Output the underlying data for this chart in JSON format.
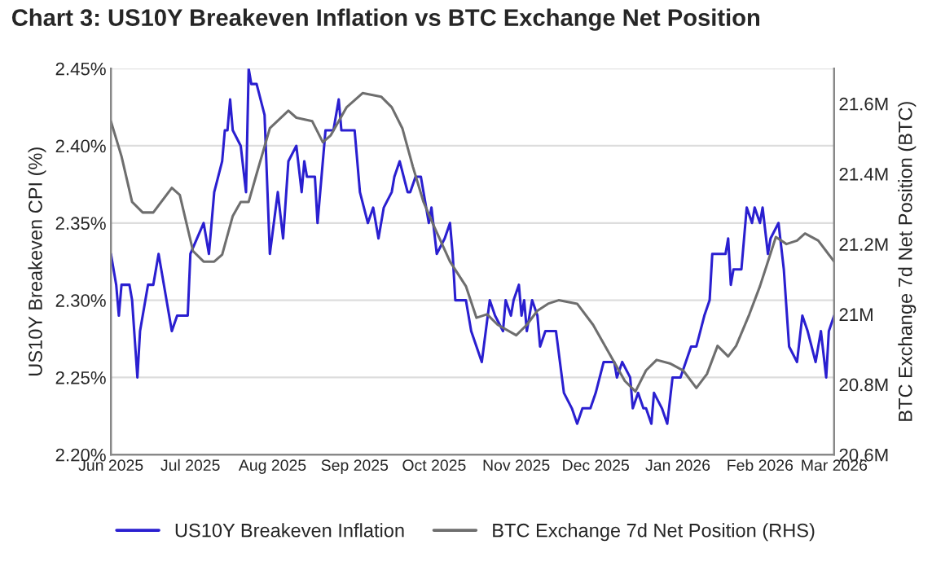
{
  "chart_data": {
    "type": "line",
    "title": "Chart 3: US10Y Breakeven Inflation vs BTC Exchange Net Position",
    "ylabel": "US10Y Breakeven CPI (%)",
    "y2label": "BTC Exchange 7d Net Position (BTC)",
    "xlim": [
      "2025-06-01",
      "2026-03-01"
    ],
    "xticks": [
      {
        "value": "2025-06-01",
        "label": "Jun 2025"
      },
      {
        "value": "2025-07-01",
        "label": "Jul 2025"
      },
      {
        "value": "2025-08-01",
        "label": "Aug 2025"
      },
      {
        "value": "2025-09-01",
        "label": "Sep 2025"
      },
      {
        "value": "2025-10-01",
        "label": "Oct 2025"
      },
      {
        "value": "2025-11-01",
        "label": "Nov 2025"
      },
      {
        "value": "2025-12-01",
        "label": "Dec 2025"
      },
      {
        "value": "2026-01-01",
        "label": "Jan 2026"
      },
      {
        "value": "2026-02-01",
        "label": "Feb 2026"
      },
      {
        "value": "2026-03-01",
        "label": "Mar 2026"
      }
    ],
    "ylim": [
      2.2,
      2.45
    ],
    "yticks": [
      {
        "value": 2.2,
        "label": "2.20%"
      },
      {
        "value": 2.25,
        "label": "2.25%"
      },
      {
        "value": 2.3,
        "label": "2.30%"
      },
      {
        "value": 2.35,
        "label": "2.35%"
      },
      {
        "value": 2.4,
        "label": "2.40%"
      },
      {
        "value": 2.45,
        "label": "2.45%"
      }
    ],
    "y2lim": [
      20.6,
      21.7
    ],
    "y2ticks": [
      {
        "value": 20.6,
        "label": "20.6M"
      },
      {
        "value": 20.8,
        "label": "20.8M"
      },
      {
        "value": 21.0,
        "label": "21M"
      },
      {
        "value": 21.2,
        "label": "21.2M"
      },
      {
        "value": 21.4,
        "label": "21.4M"
      },
      {
        "value": 21.6,
        "label": "21.6M"
      }
    ],
    "grid": "y",
    "legend": "bottom",
    "marker": "none",
    "line_style": "solid",
    "series": [
      {
        "name": "US10Y Breakeven Inflation",
        "color": "#2a1fd0",
        "x": [
          "2025-06-01",
          "2025-06-03",
          "2025-06-04",
          "2025-06-05",
          "2025-06-08",
          "2025-06-09",
          "2025-06-11",
          "2025-06-12",
          "2025-06-15",
          "2025-06-17",
          "2025-06-19",
          "2025-06-24",
          "2025-06-26",
          "2025-06-30",
          "2025-07-01",
          "2025-07-06",
          "2025-07-08",
          "2025-07-10",
          "2025-07-13",
          "2025-07-14",
          "2025-07-15",
          "2025-07-16",
          "2025-07-17",
          "2025-07-20",
          "2025-07-22",
          "2025-07-23",
          "2025-07-24",
          "2025-07-26",
          "2025-07-29",
          "2025-07-31",
          "2025-08-03",
          "2025-08-05",
          "2025-08-07",
          "2025-08-10",
          "2025-08-12",
          "2025-08-13",
          "2025-08-14",
          "2025-08-17",
          "2025-08-18",
          "2025-08-21",
          "2025-08-24",
          "2025-08-26",
          "2025-08-27",
          "2025-09-01",
          "2025-09-03",
          "2025-09-06",
          "2025-09-08",
          "2025-09-10",
          "2025-09-12",
          "2025-09-15",
          "2025-09-16",
          "2025-09-18",
          "2025-09-21",
          "2025-09-22",
          "2025-09-24",
          "2025-09-26",
          "2025-09-29",
          "2025-09-30",
          "2025-10-02",
          "2025-10-05",
          "2025-10-07",
          "2025-10-08",
          "2025-10-09",
          "2025-10-13",
          "2025-10-15",
          "2025-10-19",
          "2025-10-22",
          "2025-10-24",
          "2025-10-27",
          "2025-10-28",
          "2025-10-30",
          "2025-10-31",
          "2025-11-02",
          "2025-11-03",
          "2025-11-04",
          "2025-11-05",
          "2025-11-07",
          "2025-11-09",
          "2025-11-10",
          "2025-11-12",
          "2025-11-16",
          "2025-11-19",
          "2025-11-22",
          "2025-11-24",
          "2025-11-26",
          "2025-11-29",
          "2025-12-01",
          "2025-12-04",
          "2025-12-08",
          "2025-12-09",
          "2025-12-11",
          "2025-12-14",
          "2025-12-15",
          "2025-12-17",
          "2025-12-19",
          "2025-12-20",
          "2025-12-22",
          "2025-12-23",
          "2025-12-26",
          "2025-12-28",
          "2025-12-30",
          "2026-01-02",
          "2026-01-04",
          "2026-01-06",
          "2026-01-08",
          "2026-01-11",
          "2026-01-13",
          "2026-01-14",
          "2026-01-19",
          "2026-01-20",
          "2026-01-21",
          "2026-01-22",
          "2026-01-25",
          "2026-01-27",
          "2026-01-29",
          "2026-01-30",
          "2026-02-01",
          "2026-02-02",
          "2026-02-04",
          "2026-02-05",
          "2026-02-08",
          "2026-02-10",
          "2026-02-12",
          "2026-02-15",
          "2026-02-17",
          "2026-02-19",
          "2026-02-22",
          "2026-02-24",
          "2026-02-26",
          "2026-02-27",
          "2026-03-01"
        ],
        "values": [
          2.33,
          2.31,
          2.29,
          2.31,
          2.31,
          2.3,
          2.25,
          2.28,
          2.31,
          2.31,
          2.33,
          2.28,
          2.29,
          2.29,
          2.33,
          2.35,
          2.33,
          2.37,
          2.39,
          2.41,
          2.41,
          2.43,
          2.41,
          2.4,
          2.37,
          2.45,
          2.44,
          2.44,
          2.42,
          2.33,
          2.37,
          2.34,
          2.39,
          2.4,
          2.37,
          2.39,
          2.38,
          2.38,
          2.35,
          2.41,
          2.41,
          2.43,
          2.41,
          2.41,
          2.37,
          2.35,
          2.36,
          2.34,
          2.36,
          2.37,
          2.38,
          2.39,
          2.37,
          2.37,
          2.38,
          2.38,
          2.35,
          2.36,
          2.33,
          2.34,
          2.35,
          2.33,
          2.3,
          2.3,
          2.28,
          2.26,
          2.3,
          2.29,
          2.28,
          2.3,
          2.29,
          2.3,
          2.31,
          2.29,
          2.3,
          2.28,
          2.3,
          2.29,
          2.27,
          2.28,
          2.28,
          2.24,
          2.23,
          2.22,
          2.23,
          2.23,
          2.24,
          2.26,
          2.26,
          2.25,
          2.26,
          2.25,
          2.23,
          2.24,
          2.23,
          2.23,
          2.22,
          2.24,
          2.23,
          2.22,
          2.25,
          2.25,
          2.26,
          2.27,
          2.27,
          2.29,
          2.3,
          2.33,
          2.33,
          2.34,
          2.31,
          2.32,
          2.32,
          2.36,
          2.35,
          2.36,
          2.35,
          2.36,
          2.33,
          2.34,
          2.35,
          2.32,
          2.27,
          2.26,
          2.29,
          2.28,
          2.26,
          2.28,
          2.25,
          2.28,
          2.29
        ]
      },
      {
        "name": "BTC Exchange 7d Net Position (RHS)",
        "color": "#6e6e6e",
        "axis": "y2",
        "x": [
          "2025-06-01",
          "2025-06-05",
          "2025-06-09",
          "2025-06-13",
          "2025-06-17",
          "2025-06-24",
          "2025-06-27",
          "2025-07-02",
          "2025-07-06",
          "2025-07-10",
          "2025-07-13",
          "2025-07-17",
          "2025-07-20",
          "2025-07-23",
          "2025-07-26",
          "2025-07-31",
          "2025-08-07",
          "2025-08-10",
          "2025-08-16",
          "2025-08-20",
          "2025-08-23",
          "2025-08-29",
          "2025-09-04",
          "2025-09-11",
          "2025-09-15",
          "2025-09-19",
          "2025-09-23",
          "2025-09-27",
          "2025-10-01",
          "2025-10-07",
          "2025-10-13",
          "2025-10-17",
          "2025-10-21",
          "2025-10-25",
          "2025-11-01",
          "2025-11-05",
          "2025-11-09",
          "2025-11-13",
          "2025-11-17",
          "2025-11-24",
          "2025-11-30",
          "2025-12-06",
          "2025-12-12",
          "2025-12-16",
          "2025-12-20",
          "2025-12-24",
          "2025-12-29",
          "2026-01-03",
          "2026-01-08",
          "2026-01-12",
          "2026-01-16",
          "2026-01-20",
          "2026-01-23",
          "2026-01-28",
          "2026-02-01",
          "2026-02-04",
          "2026-02-07",
          "2026-02-11",
          "2026-02-15",
          "2026-02-18",
          "2026-02-23",
          "2026-03-01"
        ],
        "values": [
          21.55,
          21.45,
          21.32,
          21.29,
          21.29,
          21.36,
          21.34,
          21.18,
          21.15,
          21.15,
          21.17,
          21.28,
          21.32,
          21.32,
          21.4,
          21.53,
          21.58,
          21.56,
          21.55,
          21.49,
          21.51,
          21.59,
          21.63,
          21.62,
          21.59,
          21.53,
          21.42,
          21.32,
          21.25,
          21.15,
          21.08,
          20.99,
          21.0,
          20.97,
          20.94,
          20.97,
          21.01,
          21.03,
          21.04,
          21.03,
          20.97,
          20.89,
          20.81,
          20.78,
          20.84,
          20.87,
          20.86,
          20.84,
          20.79,
          20.83,
          20.91,
          20.88,
          20.91,
          21.0,
          21.08,
          21.15,
          21.22,
          21.2,
          21.21,
          21.23,
          21.21,
          21.15
        ]
      }
    ]
  }
}
